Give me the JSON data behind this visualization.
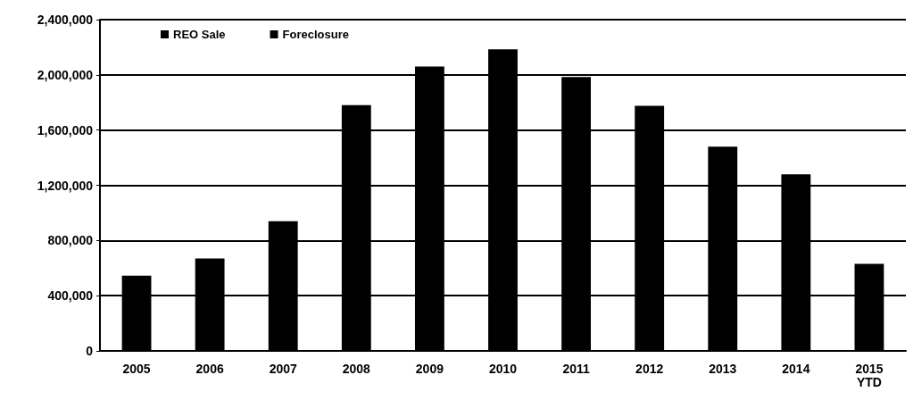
{
  "chart_data": {
    "type": "bar",
    "stacked": true,
    "categories": [
      "2005",
      "2006",
      "2007",
      "2008",
      "2009",
      "2010",
      "2011",
      "2012",
      "2013",
      "2014",
      "2015\nYTD"
    ],
    "series": [
      {
        "name": "REO Sale",
        "color": "#000000",
        "values": [
          null,
          null,
          null,
          null,
          null,
          null,
          null,
          null,
          null,
          null,
          null
        ]
      },
      {
        "name": "Foreclosure",
        "color": "#000000",
        "values": [
          545000,
          670000,
          940000,
          1780000,
          2060000,
          2185000,
          1985000,
          1775000,
          1480000,
          1280000,
          630000
        ]
      }
    ],
    "ylim": [
      0,
      2400000
    ],
    "yticks": [
      {
        "value": 0,
        "label": "0"
      },
      {
        "value": 400000,
        "label": "400,000"
      },
      {
        "value": 800000,
        "label": "800,000"
      },
      {
        "value": 1200000,
        "label": "1,200,000"
      },
      {
        "value": 1600000,
        "label": "1,600,000"
      },
      {
        "value": 2000000,
        "label": "2,000,000"
      },
      {
        "value": 2400000,
        "label": "2,400,000"
      }
    ],
    "grid": "y",
    "legend": "top left"
  }
}
